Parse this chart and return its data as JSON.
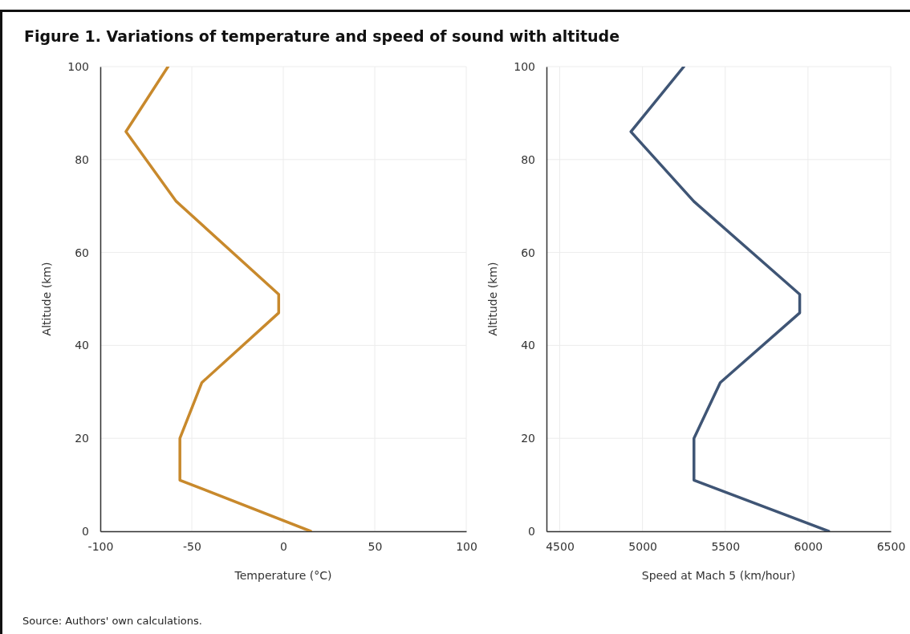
{
  "chart_data": [
    {
      "type": "line",
      "title": "Figure 1. Variations of temperature and speed of sound with altitude",
      "xlabel": "Temperature (°C)",
      "ylabel": "Altitude (km)",
      "annotations": [
        "Source: Authors' own calculations."
      ],
      "x": [
        15,
        -56.5,
        -56.5,
        -44.5,
        -2.5,
        -2.5,
        -58.5,
        -86,
        -63
      ],
      "values": [
        0,
        11,
        20,
        32,
        47,
        51,
        71,
        86,
        100
      ],
      "color": "#c8892c",
      "xlim": [
        -100,
        100
      ],
      "xticks": [
        -100,
        -50,
        0,
        50,
        100
      ],
      "ylim": [
        0,
        100
      ],
      "yticks": [
        0,
        20,
        40,
        60,
        80,
        100
      ],
      "grid": true,
      "marker": "none",
      "line_style": "solid"
    },
    {
      "type": "line",
      "xlabel": "Speed at Mach 5 (km/hour)",
      "ylabel": "Altitude (km)",
      "x": [
        6125,
        5311,
        5311,
        5470,
        5950,
        5950,
        5310,
        4930,
        5250
      ],
      "values": [
        0,
        11,
        20,
        32,
        47,
        51,
        71,
        86,
        100
      ],
      "color": "#3f5575",
      "xlim": [
        4420,
        6500
      ],
      "xticks": [
        4500,
        5000,
        5500,
        6000,
        6500
      ],
      "ylim": [
        0,
        100
      ],
      "yticks": [
        0,
        20,
        40,
        60,
        80,
        100
      ],
      "grid": true,
      "marker": "none",
      "line_style": "solid"
    }
  ]
}
